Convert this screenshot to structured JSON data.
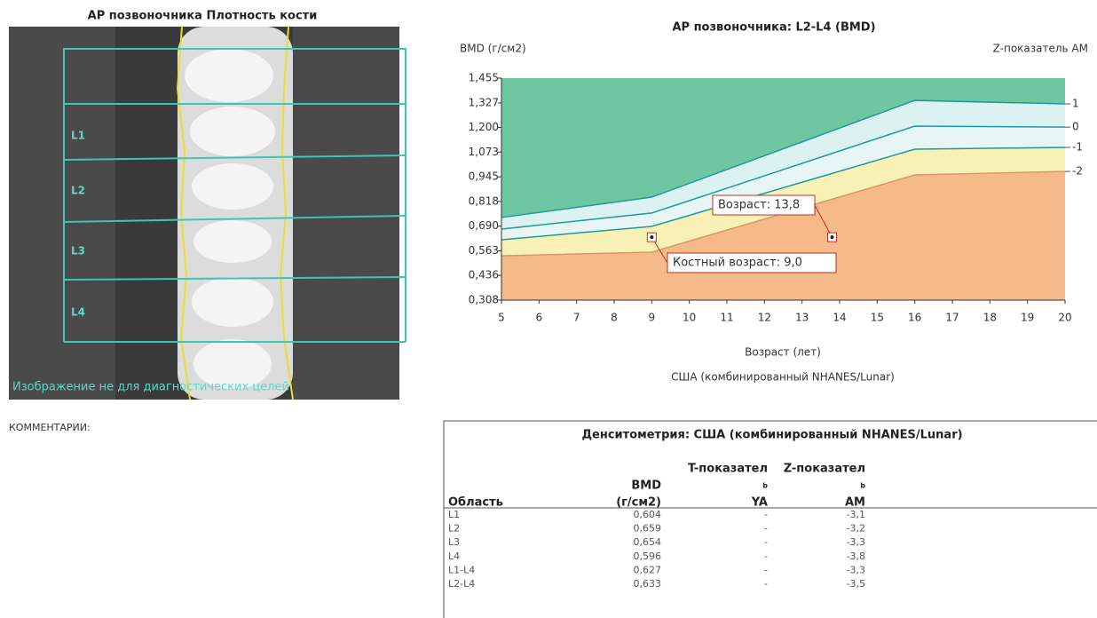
{
  "image_panel": {
    "title": "AP позвоночника Плотность кости",
    "labels": [
      "L1",
      "L2",
      "L3",
      "L4"
    ],
    "caption": "Изображение не для диагностических целей"
  },
  "chart_data": {
    "type": "area",
    "title": "AP позвоночника: L2-L4 (BMD)",
    "y_label": "BMD (г/см2)",
    "y2_label": "Z-показатель AM",
    "x_label": "Возраст (лет)",
    "subtitle": "США (комбинированный NHANES/Lunar)",
    "xlim": [
      5,
      20
    ],
    "xticks": [
      5,
      6,
      7,
      8,
      9,
      10,
      11,
      12,
      13,
      14,
      15,
      16,
      17,
      18,
      19,
      20
    ],
    "ylim": [
      0.308,
      1.455
    ],
    "yticks": [
      {
        "value": 0.308,
        "label": "0,308"
      },
      {
        "value": 0.436,
        "label": "0,436"
      },
      {
        "value": 0.563,
        "label": "0,563"
      },
      {
        "value": 0.69,
        "label": "0,690"
      },
      {
        "value": 0.818,
        "label": "0,818"
      },
      {
        "value": 0.945,
        "label": "0,945"
      },
      {
        "value": 1.073,
        "label": "1,073"
      },
      {
        "value": 1.2,
        "label": "1,200"
      },
      {
        "value": 1.327,
        "label": "1,327"
      },
      {
        "value": 1.455,
        "label": "1,455"
      }
    ],
    "background_color": "#6fc6a2",
    "x": [
      5,
      9,
      16,
      20
    ],
    "series": [
      {
        "name": "1",
        "values": [
          0.735,
          0.84,
          1.34,
          1.322
        ],
        "color": "#1f9a9a",
        "fill": "#dcf1f1"
      },
      {
        "name": "0",
        "values": [
          0.675,
          0.758,
          1.207,
          1.202
        ],
        "color": "#1f9a9a",
        "fill": "#e7f6f4"
      },
      {
        "name": "-1",
        "values": [
          0.62,
          0.689,
          1.088,
          1.097
        ],
        "color": "#1f9a9a",
        "fill": "#f7f1b6"
      },
      {
        "name": "-2",
        "values": [
          0.537,
          0.556,
          0.955,
          0.973
        ],
        "color": "#d59a6a",
        "fill": "#f5b98a"
      }
    ],
    "points": [
      {
        "x": 9.0,
        "y": 0.633,
        "label": "Костный возраст: 9,0"
      },
      {
        "x": 13.8,
        "y": 0.633,
        "label": "Возраст: 13,8"
      }
    ]
  },
  "comments": "КОММЕНТАРИИ:",
  "table": {
    "title": "Денситометрия: США (комбинированный NHANES/Lunar)",
    "headers": [
      [
        "Область"
      ],
      [
        "BMD",
        "(г/см2)"
      ],
      [
        "T-показател",
        "b",
        "YA"
      ],
      [
        "Z-показател",
        "b",
        "AM"
      ]
    ],
    "rows": [
      [
        "L1",
        "0,604",
        "-",
        "-3,1"
      ],
      [
        "L2",
        "0,659",
        "-",
        "-3,2"
      ],
      [
        "L3",
        "0,654",
        "-",
        "-3,3"
      ],
      [
        "L4",
        "0,596",
        "-",
        "-3,8"
      ],
      [
        "L1-L4",
        "0,627",
        "-",
        "-3,3"
      ],
      [
        "L2-L4",
        "0,633",
        "-",
        "-3,5"
      ]
    ]
  }
}
